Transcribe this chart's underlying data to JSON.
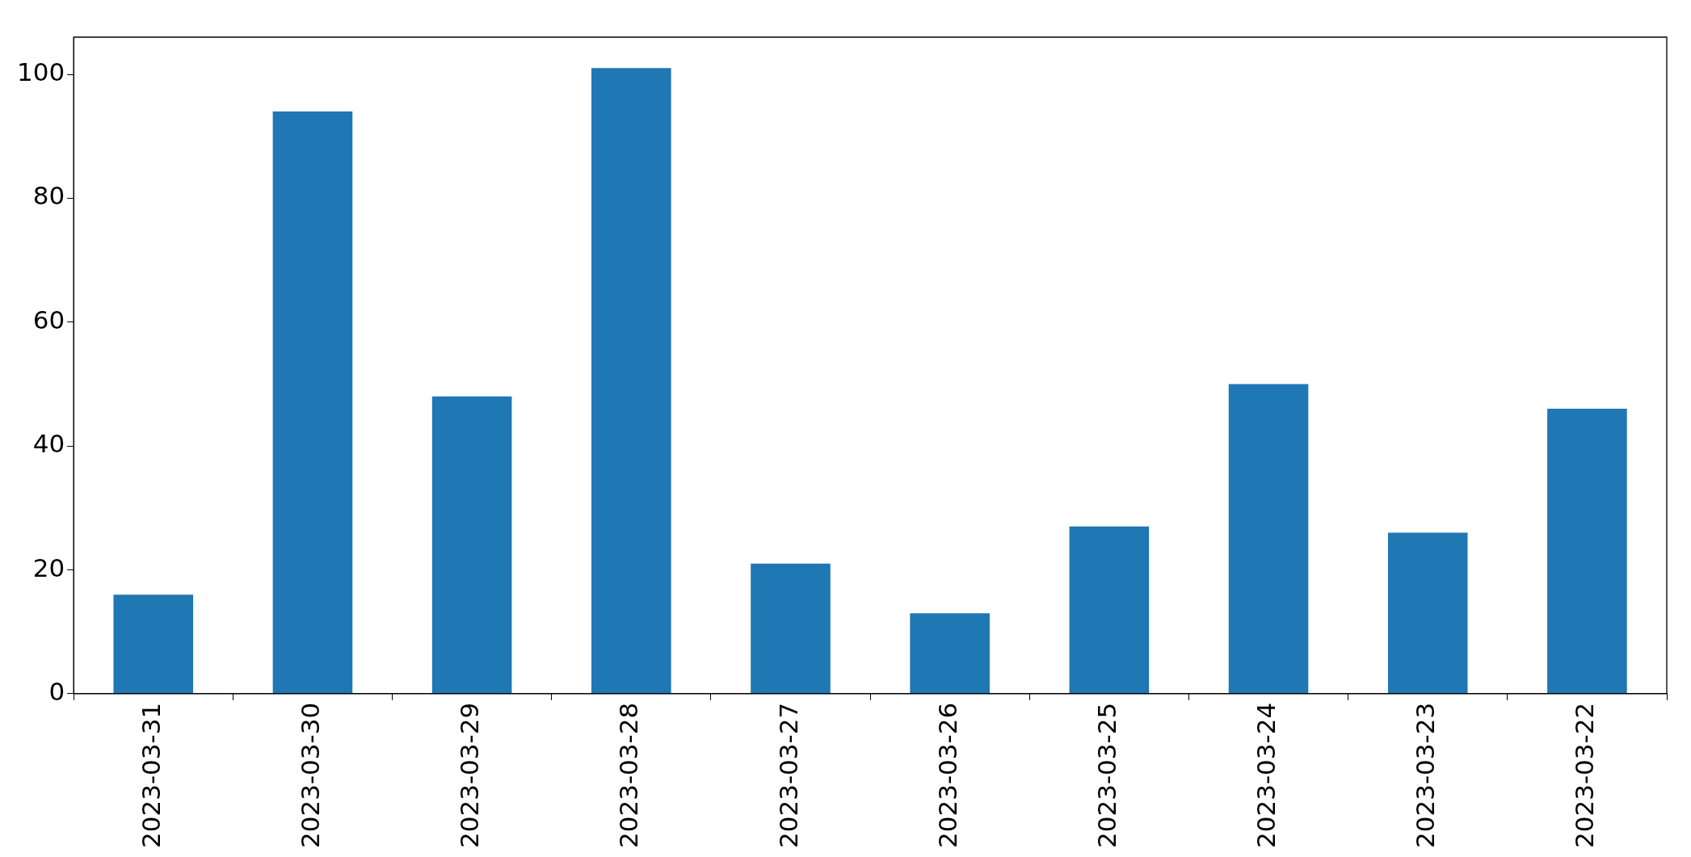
{
  "chart_data": {
    "type": "bar",
    "categories": [
      "2023-03-31",
      "2023-03-30",
      "2023-03-29",
      "2023-03-28",
      "2023-03-27",
      "2023-03-26",
      "2023-03-25",
      "2023-03-24",
      "2023-03-23",
      "2023-03-22"
    ],
    "values": [
      16,
      94,
      48,
      101,
      21,
      13,
      27,
      50,
      26,
      46
    ],
    "color": "#1f77b4",
    "ylim": [
      0,
      106
    ],
    "yticks": [
      0,
      20,
      40,
      60,
      80,
      100
    ],
    "grid": false,
    "legend": false
  }
}
